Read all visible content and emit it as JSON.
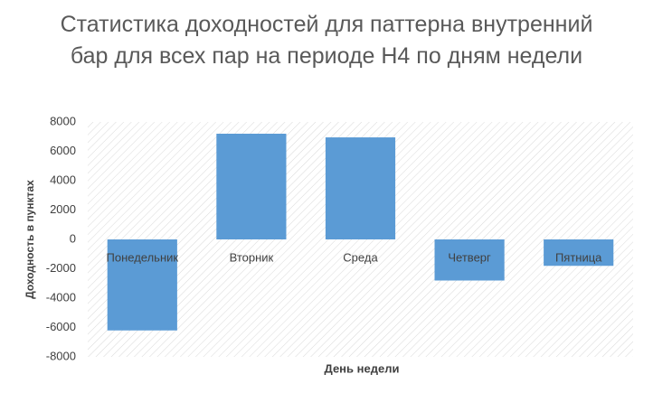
{
  "chart_data": {
    "type": "bar",
    "title": "Статистика доходностей для паттерна внутренний бар для всех пар на периоде H4 по дням недели",
    "x_label": "День недели",
    "y_label": "Доходность в пунктах",
    "categories": [
      "Понедельник",
      "Вторник",
      "Среда",
      "Четверг",
      "Пятница"
    ],
    "values": [
      -6200,
      7200,
      6950,
      -2800,
      -1800
    ],
    "color": "#5b9bd5",
    "ylim": [
      -8000,
      8000
    ],
    "yticks": [
      -8000,
      -6000,
      -4000,
      -2000,
      0,
      2000,
      4000,
      6000,
      8000
    ],
    "grid": false
  }
}
